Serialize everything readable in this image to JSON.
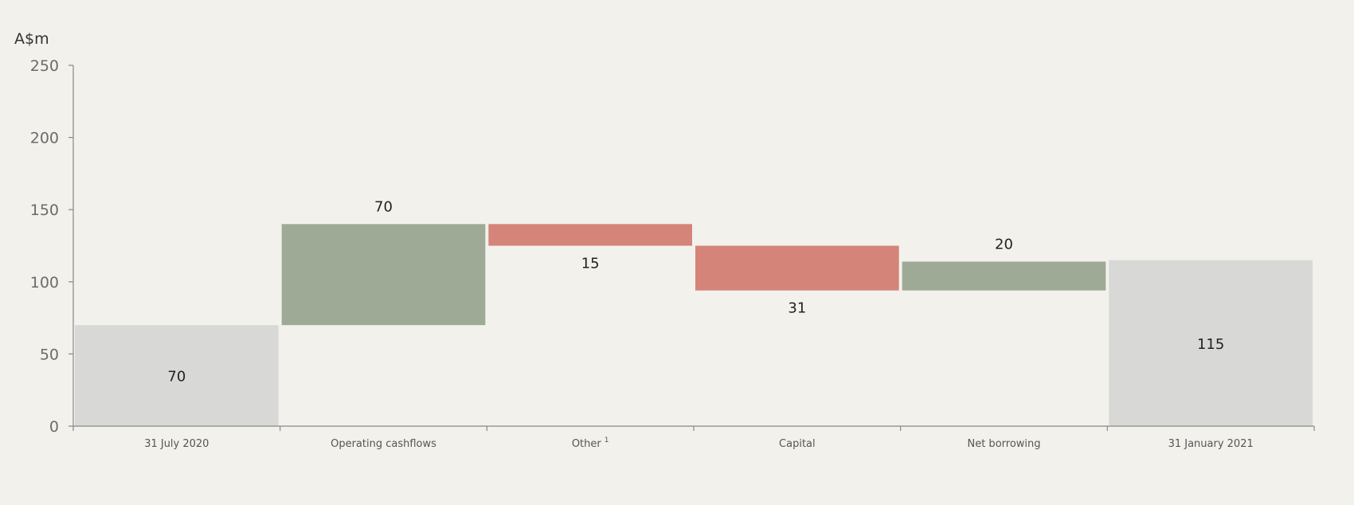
{
  "chart_data": {
    "type": "bar",
    "subtype": "waterfall",
    "unit_label": "A$m",
    "ylim": [
      0,
      250
    ],
    "yticks": [
      0,
      50,
      100,
      150,
      200,
      250
    ],
    "grid": false,
    "categories": [
      "31 July 2020",
      "Operating cashflows",
      "Other",
      "Capital",
      "Net borrowing",
      "31 January 2021"
    ],
    "footnote_marks": [
      "",
      "",
      "1",
      "",
      "",
      ""
    ],
    "values": [
      70,
      70,
      -15,
      -31,
      20,
      115
    ],
    "kinds": [
      "total",
      "increase",
      "decrease",
      "decrease",
      "increase",
      "total"
    ],
    "data_labels": [
      "70",
      "70",
      "15",
      "31",
      "20",
      "115"
    ],
    "colors": {
      "total": "#d8d8d6",
      "increase": "#9faa96",
      "decrease": "#d48478",
      "axis": "#888888"
    }
  }
}
